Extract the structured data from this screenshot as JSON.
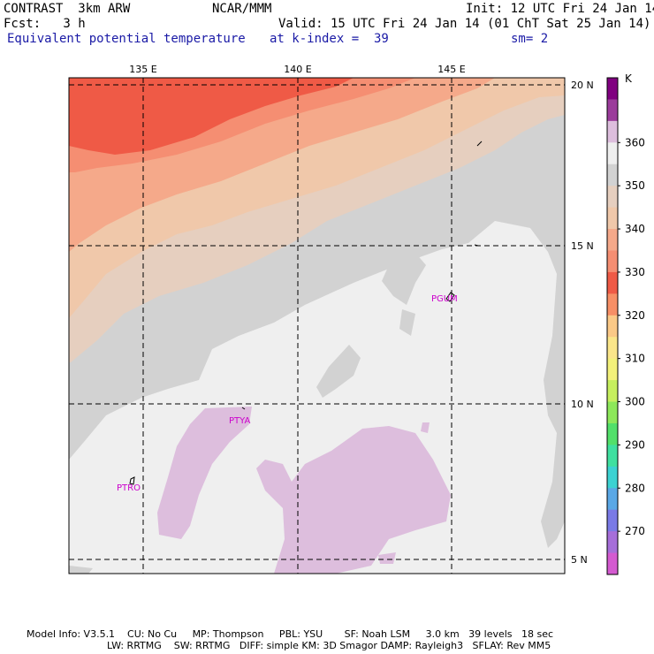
{
  "header": {
    "title": "CONTRAST  3km ARW",
    "center": "NCAR/MMM",
    "init": "Init: 12 UTC Fri 24 Jan 14",
    "fcst": "Fcst:   3 h",
    "valid": "Valid: 15 UTC Fri 24 Jan 14 (01 ChT Sat 25 Jan 14)",
    "field": "Equivalent potential temperature",
    "level": "at k-index =  39",
    "smooth": "sm= 2"
  },
  "map": {
    "lon_labels": [
      "135 E",
      "140 E",
      "145 E"
    ],
    "lat_labels": [
      "20 N",
      "15 N",
      "10 N",
      "5 N"
    ],
    "stations": [
      {
        "id": "PGUM",
        "lon": 145.0,
        "lat": 13.5
      },
      {
        "id": "PTYA",
        "lon": 138.1,
        "lat": 9.5
      },
      {
        "id": "PTRO",
        "lon": 134.5,
        "lat": 7.4
      }
    ]
  },
  "colorbar": {
    "unit": "K",
    "labels": [
      "360",
      "350",
      "340",
      "330",
      "320",
      "310",
      "300",
      "290",
      "280",
      "270"
    ],
    "colors": [
      "#800080",
      "#9b3c9b",
      "#ddbedd",
      "#efefef",
      "#d2d2d2",
      "#e6cfbf",
      "#f0c8aa",
      "#f5a98a",
      "#f58e72",
      "#ef5a46",
      "#f78f66",
      "#fbc987",
      "#fbe68a",
      "#f3f17a",
      "#c6ef5e",
      "#8de85a",
      "#52e06a",
      "#3fe0a0",
      "#3cd2d2",
      "#5aa8e6",
      "#7a7ae6",
      "#a66ed9",
      "#d45ad0"
    ]
  },
  "footer": {
    "line1": "Model Info: V3.5.1    CU: No Cu     MP: Thompson     PBL: YSU       SF: Noah LSM     3.0 km   39 levels   18 sec",
    "line2": "LW: RRTMG    SW: RRTMG   DIFF: simple KM: 3D Smagor DAMP: Rayleigh3   SFLAY: Rev MM5"
  }
}
